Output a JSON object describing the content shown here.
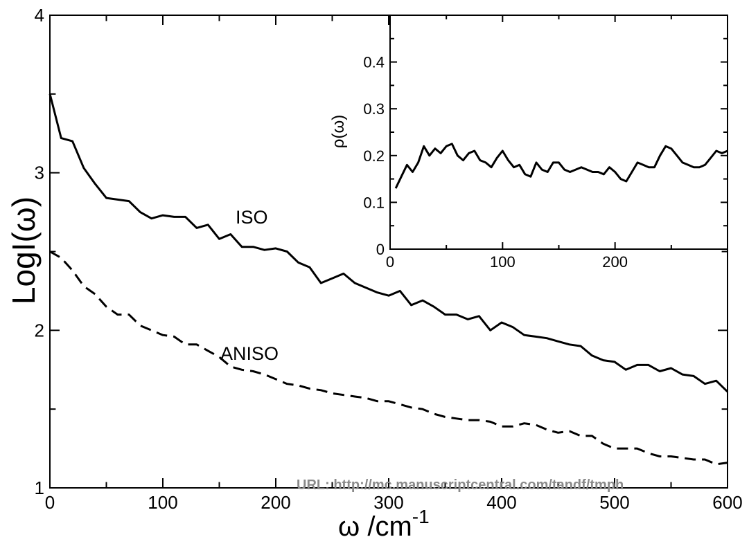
{
  "chart_data": [
    {
      "type": "line",
      "xlabel": "ω /cm",
      "xlabel_superscript": "-1",
      "ylabel": "LogI(ω)",
      "xlim": [
        0,
        600
      ],
      "ylim": [
        1,
        4
      ],
      "x_ticks": [
        0,
        100,
        200,
        300,
        400,
        500,
        600
      ],
      "x_tick_labels": [
        "0",
        "100",
        "200",
        "300",
        "400",
        "500",
        "600"
      ],
      "y_ticks": [
        1,
        2,
        3,
        4
      ],
      "y_tick_labels": [
        "1",
        "2",
        "3",
        "4"
      ],
      "grid": false,
      "annotations": [
        {
          "text": "ISO",
          "x": 160,
          "y": 2.7
        },
        {
          "text": "ANISO",
          "x": 150,
          "y": 1.85
        }
      ],
      "series": [
        {
          "name": "ISO",
          "style": "solid",
          "x": [
            0,
            10,
            20,
            30,
            40,
            50,
            60,
            70,
            80,
            90,
            100,
            110,
            120,
            130,
            140,
            150,
            160,
            170,
            180,
            190,
            200,
            210,
            220,
            230,
            240,
            250,
            260,
            270,
            280,
            290,
            300,
            310,
            320,
            330,
            340,
            350,
            360,
            370,
            380,
            390,
            400,
            410,
            420,
            430,
            440,
            450,
            460,
            470,
            480,
            490,
            500,
            510,
            520,
            530,
            540,
            550,
            560,
            570,
            580,
            590,
            600
          ],
          "y": [
            3.5,
            3.22,
            3.2,
            3.03,
            2.93,
            2.84,
            2.83,
            2.82,
            2.75,
            2.71,
            2.73,
            2.72,
            2.72,
            2.65,
            2.67,
            2.58,
            2.61,
            2.53,
            2.53,
            2.51,
            2.52,
            2.5,
            2.43,
            2.4,
            2.3,
            2.33,
            2.36,
            2.3,
            2.27,
            2.24,
            2.22,
            2.25,
            2.16,
            2.19,
            2.15,
            2.1,
            2.1,
            2.07,
            2.09,
            2.0,
            2.05,
            2.02,
            1.97,
            1.96,
            1.95,
            1.93,
            1.91,
            1.9,
            1.84,
            1.81,
            1.8,
            1.75,
            1.78,
            1.78,
            1.74,
            1.76,
            1.72,
            1.71,
            1.66,
            1.68,
            1.61
          ]
        },
        {
          "name": "ANISO",
          "style": "dashed",
          "x": [
            0,
            10,
            20,
            30,
            40,
            50,
            60,
            70,
            80,
            90,
            100,
            110,
            120,
            130,
            140,
            150,
            160,
            170,
            180,
            190,
            200,
            210,
            220,
            230,
            240,
            250,
            260,
            270,
            280,
            290,
            300,
            310,
            320,
            330,
            340,
            350,
            360,
            370,
            380,
            390,
            400,
            410,
            420,
            430,
            440,
            450,
            460,
            470,
            480,
            490,
            500,
            510,
            520,
            530,
            540,
            550,
            560,
            570,
            580,
            590,
            600
          ],
          "y": [
            2.5,
            2.46,
            2.38,
            2.28,
            2.23,
            2.15,
            2.1,
            2.1,
            2.03,
            2.0,
            1.97,
            1.96,
            1.91,
            1.91,
            1.87,
            1.83,
            1.77,
            1.75,
            1.74,
            1.72,
            1.69,
            1.66,
            1.65,
            1.63,
            1.62,
            1.6,
            1.59,
            1.58,
            1.57,
            1.55,
            1.55,
            1.53,
            1.51,
            1.5,
            1.47,
            1.45,
            1.44,
            1.43,
            1.43,
            1.42,
            1.39,
            1.39,
            1.41,
            1.4,
            1.37,
            1.35,
            1.36,
            1.33,
            1.33,
            1.28,
            1.25,
            1.25,
            1.25,
            1.22,
            1.2,
            1.2,
            1.19,
            1.18,
            1.18,
            1.15,
            1.16
          ]
        }
      ]
    },
    {
      "type": "line",
      "xlabel": "",
      "ylabel": "ρ(ω)",
      "xlim": [
        0,
        300
      ],
      "ylim": [
        0,
        0.5
      ],
      "x_ticks": [
        0,
        100,
        200
      ],
      "x_tick_labels": [
        "0",
        "100",
        "200"
      ],
      "y_ticks": [
        0,
        0.1,
        0.2,
        0.3,
        0.4
      ],
      "y_tick_labels": [
        "0",
        "0.1",
        "0.2",
        "0.3",
        "0.4"
      ],
      "grid": false,
      "series": [
        {
          "style": "solid",
          "x": [
            5,
            10,
            15,
            20,
            25,
            30,
            35,
            40,
            45,
            50,
            55,
            60,
            65,
            70,
            75,
            80,
            85,
            90,
            95,
            100,
            105,
            110,
            115,
            120,
            125,
            130,
            135,
            140,
            145,
            150,
            155,
            160,
            165,
            170,
            175,
            180,
            185,
            190,
            195,
            200,
            205,
            210,
            215,
            220,
            225,
            230,
            235,
            240,
            245,
            250,
            255,
            260,
            265,
            270,
            275,
            280,
            285,
            290,
            295,
            300
          ],
          "y": [
            0.13,
            0.155,
            0.18,
            0.165,
            0.185,
            0.22,
            0.2,
            0.215,
            0.205,
            0.22,
            0.225,
            0.2,
            0.19,
            0.205,
            0.21,
            0.19,
            0.185,
            0.175,
            0.195,
            0.21,
            0.19,
            0.175,
            0.18,
            0.16,
            0.155,
            0.185,
            0.17,
            0.165,
            0.185,
            0.185,
            0.17,
            0.165,
            0.17,
            0.175,
            0.17,
            0.165,
            0.165,
            0.16,
            0.175,
            0.165,
            0.15,
            0.145,
            0.165,
            0.185,
            0.18,
            0.175,
            0.175,
            0.2,
            0.22,
            0.215,
            0.2,
            0.185,
            0.18,
            0.175,
            0.175,
            0.18,
            0.195,
            0.21,
            0.205,
            0.21
          ]
        }
      ]
    }
  ],
  "watermark": "URL: http://mc.manuscriptcentral.com/tandf/tmph"
}
